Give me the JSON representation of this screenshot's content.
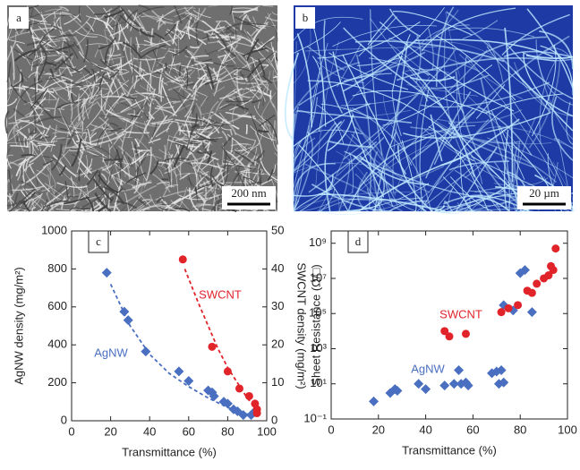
{
  "panels": [
    {
      "label": "a",
      "scale_bar": "200 nm"
    },
    {
      "label": "b",
      "scale_bar": "20 µm"
    }
  ],
  "chart_data": [
    {
      "type": "scatter",
      "panel_label": "c",
      "x_label": "Transmittance (%)",
      "y_label": "AgNW density (mg/m²)",
      "y2_label": "SWCNT density (mg/m²)",
      "xlim": [
        0,
        100
      ],
      "xticks": [
        0,
        20,
        40,
        60,
        80,
        100
      ],
      "ylim": [
        0,
        1000
      ],
      "yticks": [
        0,
        200,
        400,
        600,
        800,
        1000
      ],
      "y2lim": [
        0,
        50
      ],
      "y2ticks": [
        0,
        10,
        20,
        30,
        40,
        50
      ],
      "series": [
        {
          "name": "AgNW",
          "color": "#4a6fc1",
          "marker": "diamond",
          "x": [
            18,
            27,
            29,
            38,
            55,
            60,
            70,
            72,
            73,
            78,
            80,
            83,
            85,
            88,
            92,
            94
          ],
          "values": [
            780,
            575,
            530,
            365,
            260,
            210,
            160,
            150,
            130,
            100,
            90,
            60,
            50,
            30,
            30,
            50
          ],
          "fit_x": [
            20,
            30,
            40,
            50,
            60,
            70,
            80,
            90,
            95
          ],
          "fit": [
            720,
            500,
            350,
            250,
            180,
            120,
            70,
            35,
            20
          ]
        },
        {
          "name": "SWCNT",
          "color": "#e0242a",
          "marker": "circle",
          "axis": "y2",
          "x": [
            57,
            72,
            80,
            86,
            91,
            94,
            95,
            95
          ],
          "values": [
            42.5,
            19.5,
            13,
            8.5,
            6.5,
            4.5,
            3,
            2
          ],
          "fit_x": [
            58,
            65,
            70,
            75,
            80,
            85,
            90,
            95
          ],
          "fit": [
            40,
            31,
            25,
            19,
            14,
            10,
            6,
            3
          ]
        }
      ]
    },
    {
      "type": "scatter",
      "panel_label": "d",
      "x_label": "Transmittance (%)",
      "y_label": "Sheet Resistance (Ω/□)",
      "log_y": true,
      "xlim": [
        0,
        100
      ],
      "xticks": [
        0,
        20,
        40,
        60,
        80,
        100
      ],
      "ylim": [
        0.1,
        5000000000
      ],
      "yticks": [
        {
          "value": 0.1,
          "label": "10⁻¹"
        },
        {
          "value": 10,
          "label": "10¹"
        },
        {
          "value": 1000,
          "label": "10³"
        },
        {
          "value": 100000,
          "label": "10⁵"
        },
        {
          "value": 10000000,
          "label": "10⁷"
        },
        {
          "value": 1000000000,
          "label": "10⁹"
        }
      ],
      "series": [
        {
          "name": "AgNW",
          "color": "#4a6fc1",
          "marker": "diamond",
          "x": [
            18,
            25,
            27,
            28,
            37,
            40,
            48,
            52,
            54,
            55,
            57,
            58,
            68,
            70,
            71,
            72,
            73,
            73,
            77,
            80,
            82,
            85
          ],
          "values": [
            1,
            3,
            5,
            4,
            10,
            5,
            8,
            10,
            60,
            10,
            12,
            8,
            40,
            50,
            10,
            60,
            12,
            300000,
            150000,
            20000000,
            30000000,
            120000
          ]
        },
        {
          "name": "SWCNT",
          "color": "#e0242a",
          "marker": "circle",
          "x": [
            48,
            50,
            57,
            72,
            75,
            79,
            83,
            85,
            87,
            90,
            92,
            93,
            94,
            95
          ],
          "values": [
            10000,
            5000,
            7000,
            120000,
            200000,
            300000,
            2000000,
            1500000,
            5000000,
            10000000,
            15000000,
            50000000,
            30000000,
            500000000
          ]
        }
      ]
    }
  ]
}
